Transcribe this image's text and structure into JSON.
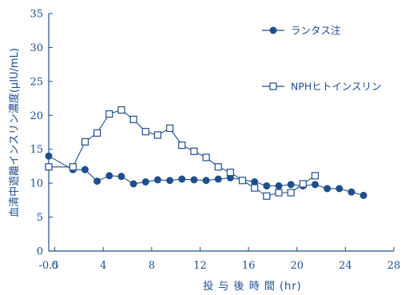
{
  "chart_data": {
    "type": "line",
    "xlabel": "投 与 後 時 間 (hr)",
    "ylabel": "血清中遊離インスリン濃度(μIU/mL)",
    "xlim": [
      -0.5,
      28
    ],
    "ylim": [
      0,
      35
    ],
    "x_ticks": [
      {
        "value": -0.5,
        "label": "-0.5"
      },
      {
        "value": 0,
        "label": "0"
      },
      {
        "value": 4,
        "label": "4"
      },
      {
        "value": 8,
        "label": "8"
      },
      {
        "value": 12,
        "label": "12"
      },
      {
        "value": 16,
        "label": "16"
      },
      {
        "value": 20,
        "label": "20"
      },
      {
        "value": 24,
        "label": "24"
      },
      {
        "value": 28,
        "label": "28"
      }
    ],
    "y_ticks": [
      0,
      5,
      10,
      15,
      20,
      25,
      30,
      35
    ],
    "legend_position": "top-right",
    "colors": {
      "axis": "#1f4e8c",
      "series": "#1f4e8c"
    },
    "series": [
      {
        "name": "ランタス注",
        "marker": "filled-circle",
        "x": [
          -0.5,
          1.5,
          2.5,
          3.5,
          4.5,
          5.5,
          6.5,
          7.5,
          8.5,
          9.5,
          10.5,
          11.5,
          12.5,
          13.5,
          14.5,
          16.5,
          17.5,
          18.5,
          19.5,
          20.5,
          21.5,
          22.5,
          23.5,
          24.5,
          25.5
        ],
        "y": [
          14.0,
          12.0,
          12.0,
          10.3,
          11.1,
          11.0,
          9.9,
          10.2,
          10.5,
          10.4,
          10.6,
          10.5,
          10.4,
          10.6,
          10.8,
          10.2,
          9.6,
          9.6,
          9.8,
          9.6,
          9.8,
          9.2,
          9.2,
          8.7,
          8.2
        ]
      },
      {
        "name": "NPHヒトインスリン",
        "marker": "open-square",
        "x": [
          -0.5,
          1.5,
          2.5,
          3.5,
          4.5,
          5.5,
          6.5,
          7.5,
          8.5,
          9.5,
          10.5,
          11.5,
          12.5,
          13.5,
          14.5,
          15.5,
          16.5,
          17.5,
          18.5,
          19.5,
          20.5,
          21.5
        ],
        "y": [
          12.4,
          12.4,
          16.1,
          17.4,
          20.2,
          20.8,
          19.4,
          17.6,
          17.1,
          18.1,
          15.6,
          14.7,
          13.8,
          12.4,
          11.6,
          10.4,
          9.3,
          8.1,
          8.6,
          8.6,
          9.9,
          11.1
        ]
      }
    ]
  }
}
